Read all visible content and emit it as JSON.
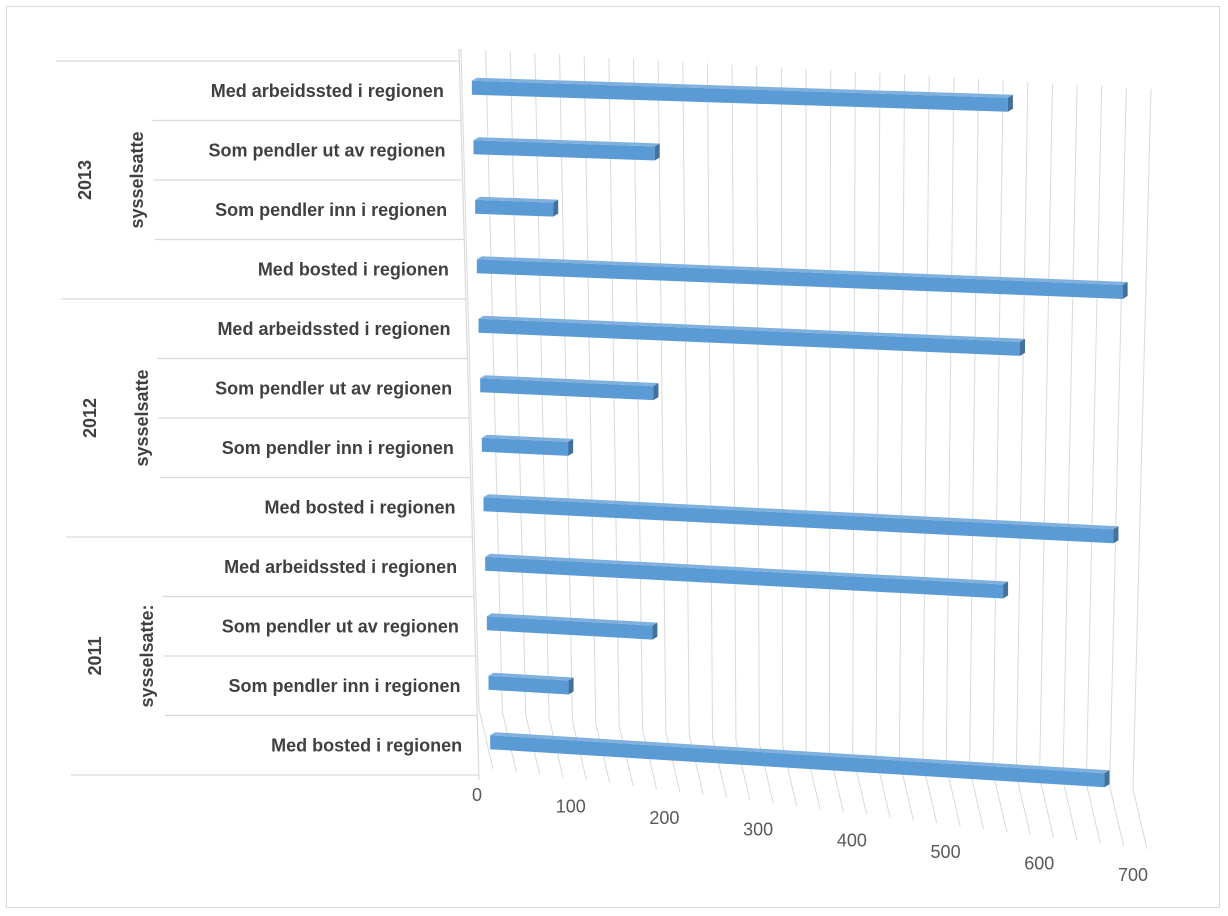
{
  "chart_data": {
    "type": "bar",
    "orientation": "horizontal",
    "style": "3d-perspective",
    "title": "",
    "xlabel": "",
    "ylabel": "",
    "xlim": [
      0,
      700
    ],
    "x_ticks": [
      "0",
      "100",
      "200",
      "300",
      "400",
      "500",
      "600",
      "700"
    ],
    "grid": true,
    "legend": "none",
    "bar_color": "#5b9bd5",
    "bar_shadow_color": "#41719c",
    "groups": [
      {
        "year": "2013",
        "sublabel": "sysselsatte",
        "categories": [
          "Med arbeidssted i regionen",
          "Som pendler ut av regionen",
          "Som pendler inn i regionen",
          "Med bosted i regionen"
        ],
        "values": [
          545,
          185,
          80,
          665
        ]
      },
      {
        "year": "2012",
        "sublabel": "sysselsatte",
        "categories": [
          "Med arbeidssted i regionen",
          "Som pendler ut av regionen",
          "Som pendler inn i regionen",
          "Med bosted i regionen"
        ],
        "values": [
          560,
          180,
          90,
          660
        ]
      },
      {
        "year": "2011",
        "sublabel": "sysselsatte:",
        "categories": [
          "Med arbeidssted i regionen",
          "Som pendler ut av regionen",
          "Som pendler inn i regionen",
          "Med bosted i regionen"
        ],
        "values": [
          545,
          175,
          85,
          655
        ]
      }
    ]
  }
}
